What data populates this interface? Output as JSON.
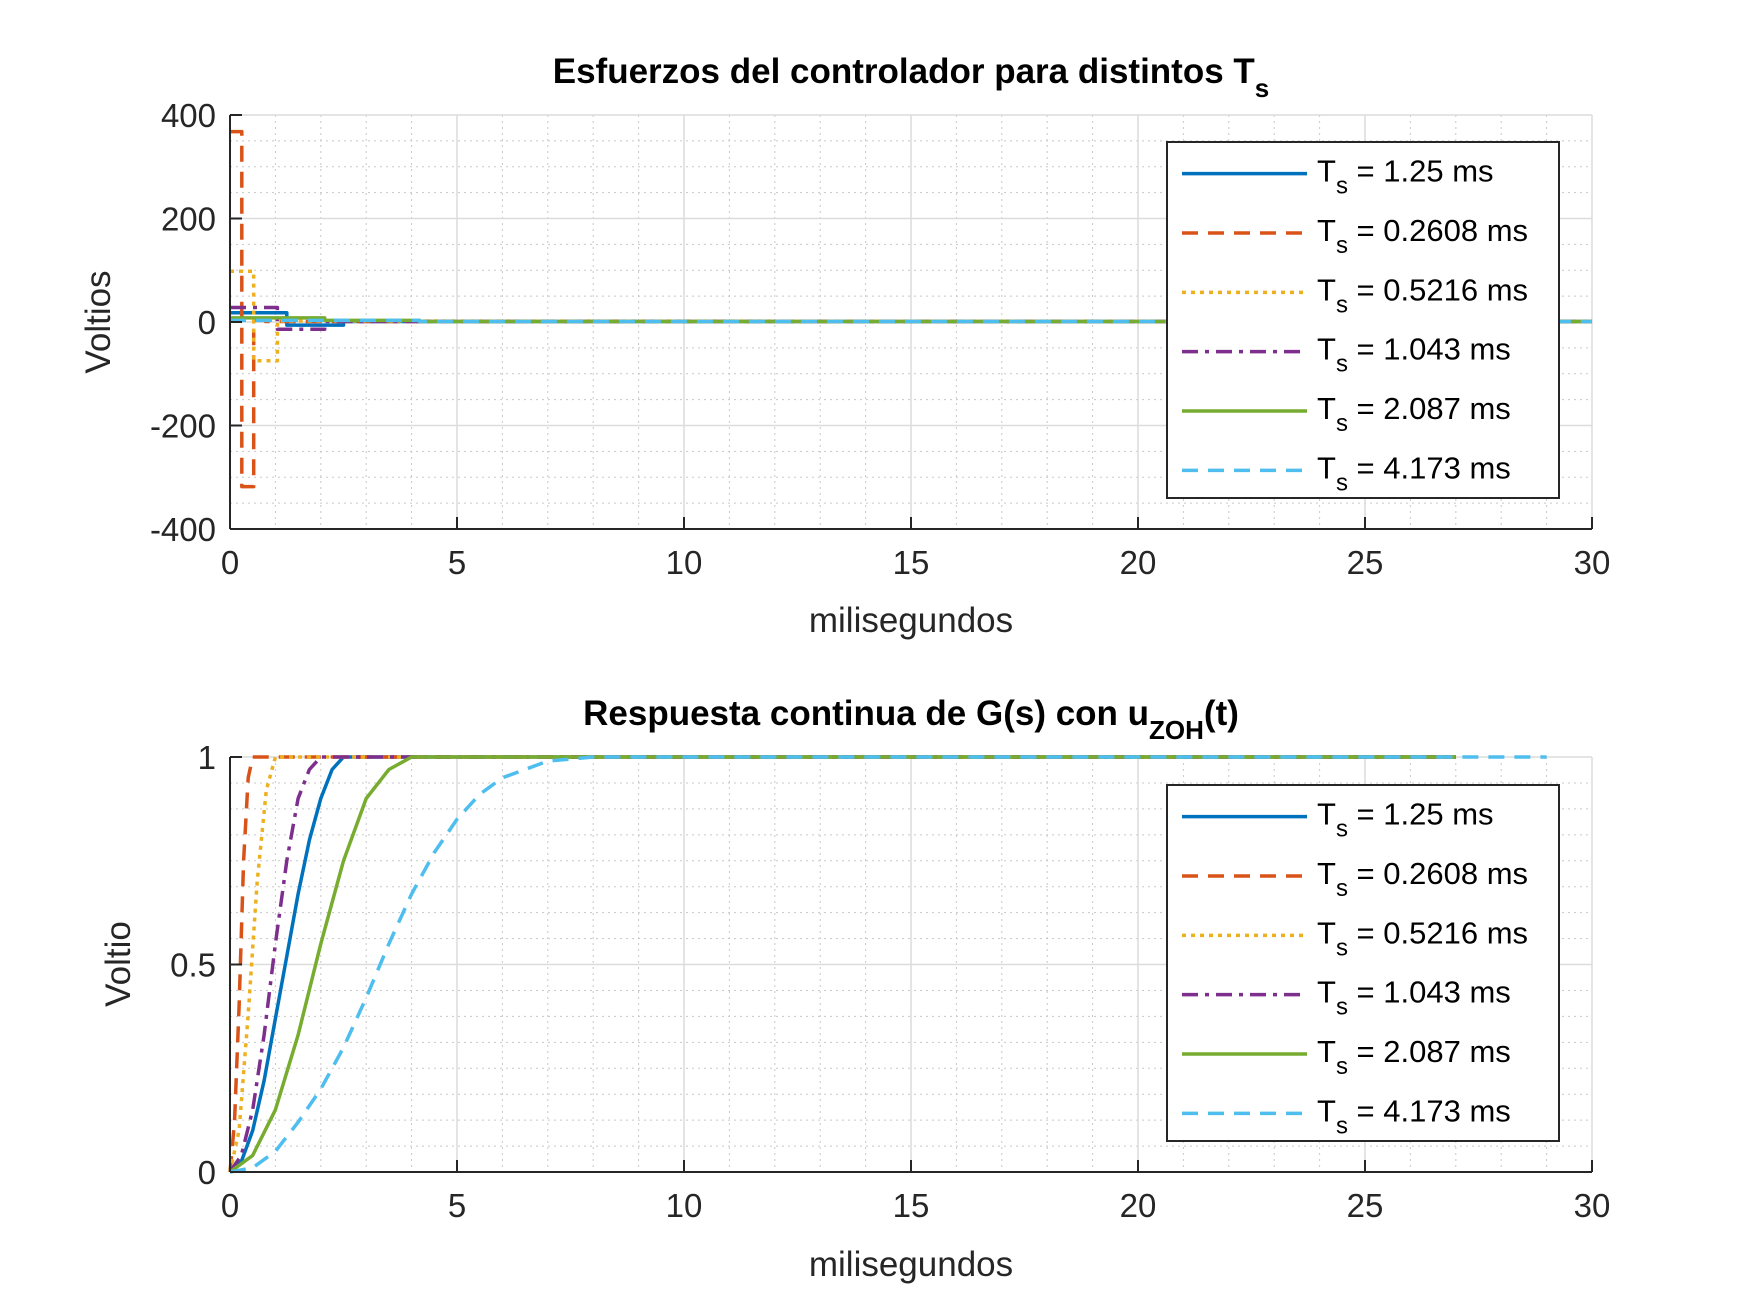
{
  "chart_data": [
    {
      "type": "line",
      "title": "Esfuerzos del controlador para distintos",
      "title_sym": "T",
      "title_sub": "s",
      "xlabel": "milisegundos",
      "ylabel": "Voltios",
      "xlim": [
        0,
        30
      ],
      "ylim": [
        -400,
        400
      ],
      "xticks": [
        0,
        5,
        10,
        15,
        20,
        25,
        30
      ],
      "yticks": [
        -400,
        -200,
        0,
        200,
        400
      ],
      "ytick_labels": [
        "-400",
        "-200",
        "0",
        "200",
        "400"
      ],
      "grid": true,
      "minor_grid": true,
      "legend_position": "top-right",
      "series": [
        {
          "name": "1.25 ms",
          "color": "#0072BD",
          "dash": "solid",
          "x": [
            0,
            1.25,
            1.25,
            2.5,
            2.5,
            30
          ],
          "y": [
            18,
            18,
            -6,
            -6,
            1,
            1
          ]
        },
        {
          "name": "0.2608 ms",
          "color": "#D95319",
          "dash": "dashed",
          "x": [
            0,
            0.2608,
            0.2608,
            0.5216,
            0.5216,
            0.7824,
            0.7824,
            30
          ],
          "y": [
            368,
            368,
            -318,
            -318,
            3,
            3,
            1,
            1
          ]
        },
        {
          "name": "0.5216 ms",
          "color": "#EDB120",
          "dash": "dotted",
          "x": [
            0,
            0.5216,
            0.5216,
            1.0432,
            1.0432,
            30
          ],
          "y": [
            98,
            98,
            -75,
            -75,
            2,
            1
          ]
        },
        {
          "name": "1.043 ms",
          "color": "#7E2F8E",
          "dash": "dashdot",
          "x": [
            0,
            1.043,
            1.043,
            2.086,
            2.086,
            30
          ],
          "y": [
            28,
            28,
            -14,
            -14,
            1,
            1
          ]
        },
        {
          "name": "2.087 ms",
          "color": "#77AC30",
          "dash": "solid",
          "x": [
            0,
            2.087,
            2.087,
            4.174,
            4.174,
            30
          ],
          "y": [
            8,
            8,
            3,
            3,
            1,
            1
          ]
        },
        {
          "name": "4.173 ms",
          "color": "#4DBEEE",
          "dash": "dashed",
          "x": [
            0,
            4.173,
            4.173,
            30
          ],
          "y": [
            3,
            3,
            1,
            1
          ]
        }
      ]
    },
    {
      "type": "line",
      "title": "Respuesta continua de G(s) con u",
      "title_sub": "ZOH",
      "title_tail": "(t)",
      "xlabel": "milisegundos",
      "ylabel": "Voltio",
      "xlim": [
        0,
        30
      ],
      "ylim": [
        0,
        1
      ],
      "xticks": [
        0,
        5,
        10,
        15,
        20,
        25,
        30
      ],
      "yticks": [
        0,
        0.5,
        1
      ],
      "ytick_labels": [
        "0",
        "0.5",
        "1"
      ],
      "grid": true,
      "minor_grid": true,
      "legend_position": "right",
      "series": [
        {
          "name": "1.25 ms",
          "color": "#0072BD",
          "dash": "solid",
          "x": [
            0,
            0.25,
            0.5,
            0.75,
            1.0,
            1.25,
            1.5,
            1.75,
            2.0,
            2.25,
            2.5,
            3.0,
            27
          ],
          "y": [
            0,
            0.025,
            0.1,
            0.22,
            0.37,
            0.52,
            0.67,
            0.8,
            0.9,
            0.97,
            1.0,
            1.0,
            1.0
          ]
        },
        {
          "name": "0.2608 ms",
          "color": "#D95319",
          "dash": "dashed",
          "x": [
            0,
            0.1,
            0.2,
            0.3,
            0.4,
            0.5,
            0.6,
            27
          ],
          "y": [
            0,
            0.12,
            0.4,
            0.75,
            0.95,
            1.0,
            1.0,
            1.0
          ]
        },
        {
          "name": "0.5216 ms",
          "color": "#EDB120",
          "dash": "dotted",
          "x": [
            0,
            0.2,
            0.4,
            0.6,
            0.8,
            1.0,
            1.2,
            27
          ],
          "y": [
            0,
            0.1,
            0.38,
            0.7,
            0.92,
            1.0,
            1.0,
            1.0
          ]
        },
        {
          "name": "1.043 ms",
          "color": "#7E2F8E",
          "dash": "dashdot",
          "x": [
            0,
            0.25,
            0.5,
            0.75,
            1.0,
            1.25,
            1.5,
            1.75,
            2.0,
            2.5,
            27
          ],
          "y": [
            0,
            0.04,
            0.15,
            0.33,
            0.55,
            0.75,
            0.9,
            0.97,
            1.0,
            1.0,
            1.0
          ]
        },
        {
          "name": "2.087 ms",
          "color": "#77AC30",
          "dash": "solid",
          "x": [
            0,
            0.5,
            1.0,
            1.5,
            2.0,
            2.5,
            3.0,
            3.5,
            4.0,
            4.5,
            27
          ],
          "y": [
            0,
            0.04,
            0.15,
            0.33,
            0.55,
            0.75,
            0.9,
            0.97,
            1.0,
            1.0,
            1.0
          ]
        },
        {
          "name": "4.173 ms",
          "color": "#4DBEEE",
          "dash": "dashed",
          "x": [
            0,
            0.5,
            1.0,
            1.5,
            2.0,
            2.5,
            3.0,
            3.5,
            4.0,
            4.5,
            5.0,
            5.5,
            6.0,
            7.0,
            8.0,
            29
          ],
          "y": [
            0,
            0.01,
            0.05,
            0.12,
            0.2,
            0.3,
            0.42,
            0.55,
            0.67,
            0.77,
            0.85,
            0.91,
            0.95,
            0.99,
            1.0,
            1.0
          ]
        }
      ]
    }
  ]
}
